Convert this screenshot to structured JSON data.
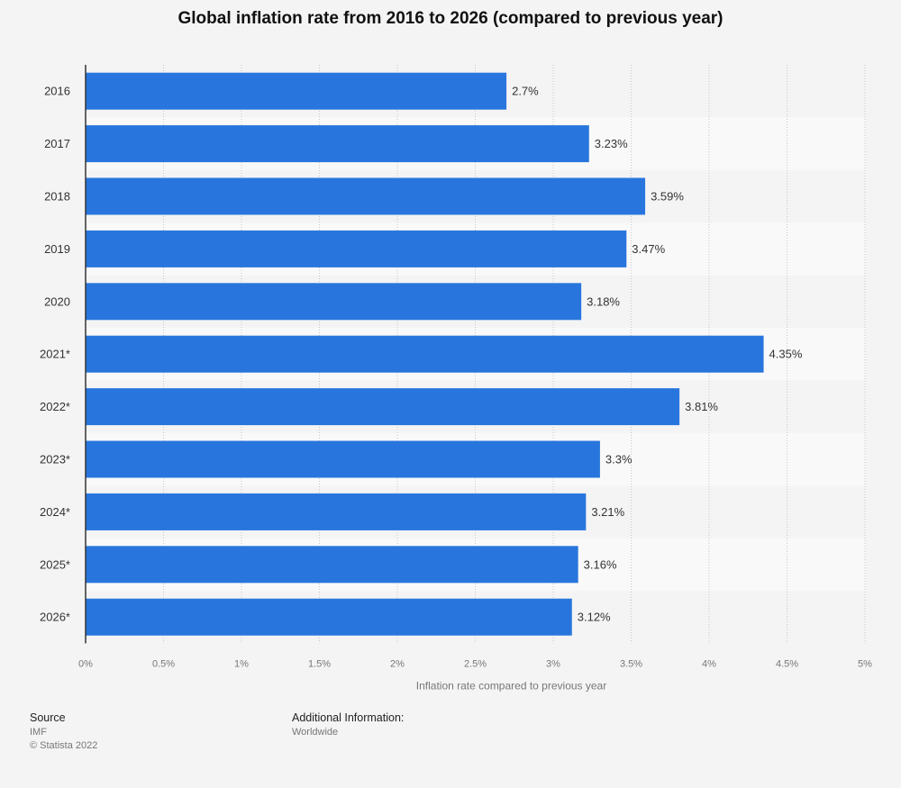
{
  "page": {
    "title": "Global inflation rate from 2016 to 2026 (compared to previous year)"
  },
  "chart_data": {
    "type": "bar",
    "orientation": "horizontal",
    "title": "Global inflation rate from 2016 to 2026 (compared to previous year)",
    "categories": [
      "2016",
      "2017",
      "2018",
      "2019",
      "2020",
      "2021*",
      "2022*",
      "2023*",
      "2024*",
      "2025*",
      "2026*"
    ],
    "values": [
      2.7,
      3.23,
      3.59,
      3.47,
      3.18,
      4.35,
      3.81,
      3.3,
      3.21,
      3.16,
      3.12
    ],
    "data_labels": [
      "2.7%",
      "3.23%",
      "3.59%",
      "3.47%",
      "3.18%",
      "4.35%",
      "3.81%",
      "3.3%",
      "3.21%",
      "3.16%",
      "3.12%"
    ],
    "xlabel": "Inflation rate compared to previous year",
    "ylabel": "",
    "xlim": [
      0,
      5
    ],
    "ticks": [
      0,
      0.5,
      1,
      1.5,
      2,
      2.5,
      3,
      3.5,
      4,
      4.5,
      5
    ],
    "tick_labels": [
      "0%",
      "0.5%",
      "1%",
      "1.5%",
      "2%",
      "2.5%",
      "3%",
      "3.5%",
      "4%",
      "4.5%",
      "5%"
    ],
    "grid": true,
    "legend": false,
    "colors": {
      "bar": "#2876dd",
      "row_band": "#f9f9f9",
      "grid": "#c8c8c8",
      "axis": "#333333",
      "label": "#333333",
      "tick": "#777777"
    }
  },
  "footer": {
    "source_heading": "Source",
    "source_name": "IMF",
    "copyright": "© Statista 2022",
    "info_heading": "Additional Information:",
    "info_text": "Worldwide"
  }
}
